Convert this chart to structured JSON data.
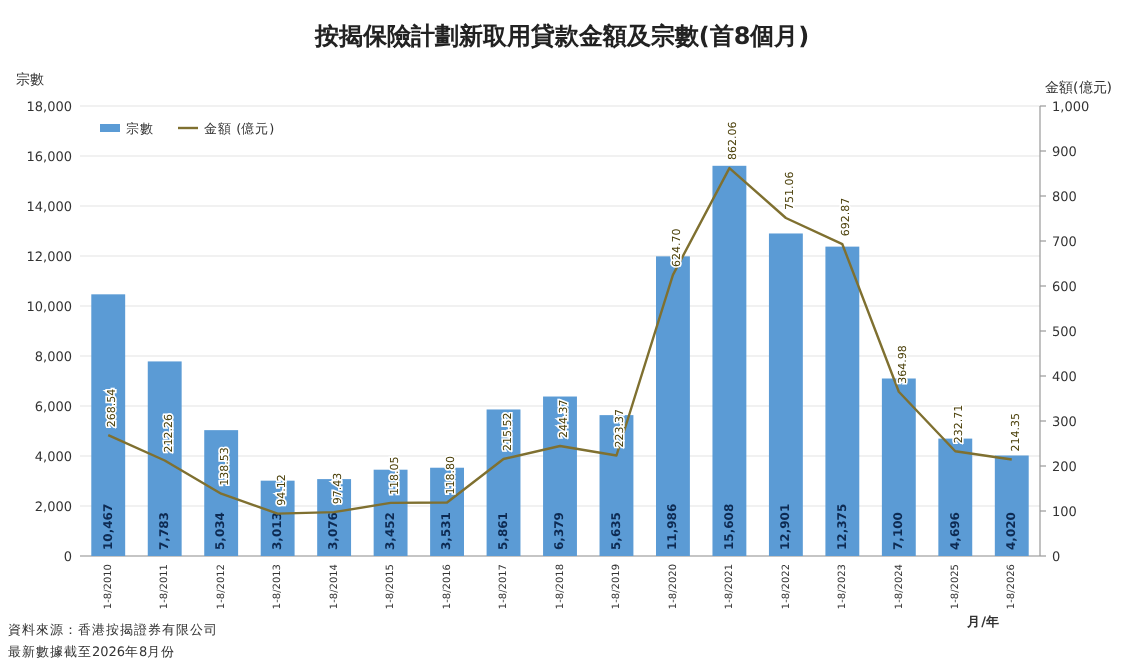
{
  "chart_data": {
    "type": "bar",
    "title": "按揭保險計劃新取用貸款金額及宗數(首8個月)",
    "ylabel": "宗數",
    "y2label": "金額(億元)",
    "xlabel": "月/年",
    "categories": [
      "1-8/2010",
      "1-8/2011",
      "1-8/2012",
      "1-8/2013",
      "1-8/2014",
      "1-8/2015",
      "1-8/2016",
      "1-8/2017",
      "1-8/2018",
      "1-8/2019",
      "1-8/2020",
      "1-8/2021",
      "1-8/2022",
      "1-8/2023",
      "1-8/2024",
      "1-8/2025",
      "1-8/2026"
    ],
    "series": [
      {
        "name": "宗數",
        "color": "#5b9bd5",
        "values": [
          10467,
          7783,
          5034,
          3013,
          3076,
          3452,
          3531,
          5861,
          6379,
          5635,
          11986,
          15608,
          12901,
          12375,
          7100,
          4696,
          4020
        ],
        "value_labels": [
          "10,467",
          "7,783",
          "5,034",
          "3,013",
          "3,076",
          "3,452",
          "3,531",
          "5,861",
          "6,379",
          "5,635",
          "11,986",
          "15,608",
          "12,901",
          "12,375",
          "7,100",
          "4,696",
          "4,020"
        ]
      },
      {
        "name": "金額 (億元)",
        "type": "line",
        "axis": "y2",
        "color": "#7f7030",
        "values": [
          268.54,
          212.26,
          138.53,
          94.12,
          97.43,
          118.05,
          118.8,
          215.52,
          244.37,
          223.37,
          624.7,
          862.06,
          751.06,
          692.87,
          364.98,
          232.71,
          214.35
        ],
        "value_labels": [
          "268.54",
          "212.26",
          "138.53",
          "94.12",
          "97.43",
          "118.05",
          "118.80",
          "215.52",
          "244.37",
          "223.37",
          "624.70",
          "862.06",
          "751.06",
          "692.87",
          "364.98",
          "232.71",
          "214.35"
        ]
      }
    ],
    "ylim": [
      0,
      18000
    ],
    "yticks": [
      0,
      {
        "value": 2000,
        "label": "2,000"
      },
      {
        "value": 4000,
        "label": "4,000"
      },
      {
        "value": 6000,
        "label": "6,000"
      },
      {
        "value": 8000,
        "label": "8,000"
      },
      {
        "value": 10000,
        "label": "10,000"
      },
      {
        "value": 12000,
        "label": "12,000"
      },
      {
        "value": 14000,
        "label": "14,000"
      },
      {
        "value": 16000,
        "label": "16,000"
      },
      {
        "value": 18000,
        "label": "18,000"
      }
    ],
    "y2lim": [
      0,
      1000
    ],
    "y2ticks": [
      0,
      100,
      200,
      300,
      400,
      500,
      600,
      700,
      800,
      900,
      {
        "value": 1000,
        "label": "1,000"
      }
    ],
    "grid": "y",
    "legend": "top left",
    "annotations": [
      "資料來源：香港按揭證券有限公司",
      "最新數據截至2026年8月份"
    ]
  }
}
